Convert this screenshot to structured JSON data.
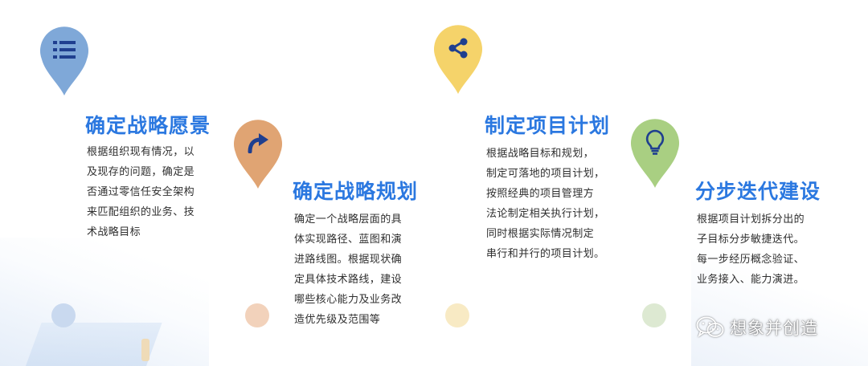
{
  "steps": [
    {
      "title": "确定战略愿景",
      "icon": "list-icon",
      "color": "#7fa8d8",
      "lines": [
        "根据组织现有情况，以",
        "及现存的问题，确定是",
        "否通过零信任安全架构",
        "来匹配组织的业务、技",
        "术战略目标"
      ]
    },
    {
      "title": "确定战略规划",
      "icon": "arrow-turn-icon",
      "color": "#e0a473",
      "lines": [
        "确定一个战略层面的具",
        "体实现路径、蓝图和演",
        "进路线图。根据现状确",
        "定具体技术路线，建设",
        "哪些核心能力及业务改",
        "造优先级及范围等"
      ]
    },
    {
      "title": "制定项目计划",
      "icon": "share-icon",
      "color": "#f5d36a",
      "lines": [
        "根据战略目标和规划，",
        "制定可落地的项目计划，",
        "按照经典的项目管理方",
        "法论制定相关执行计划，",
        "同时根据实际情况制定",
        "串行和并行的项目计划。"
      ]
    },
    {
      "title": "分步迭代建设",
      "icon": "lightbulb-icon",
      "color": "#a9cf82",
      "lines": [
        "根据项目计划拆分出的",
        "子目标分步敏捷迭代。",
        "每一步经历概念验证、",
        "业务接入、能力演进。"
      ]
    }
  ],
  "dots": [
    {
      "color": "#c9d9ef"
    },
    {
      "color": "#f2d2bb"
    },
    {
      "color": "#f8eac4"
    },
    {
      "color": "#dde9d2"
    }
  ],
  "watermark": {
    "text": "想象并创造",
    "icon": "wechat-icon"
  },
  "title_color": "#2b78e0"
}
